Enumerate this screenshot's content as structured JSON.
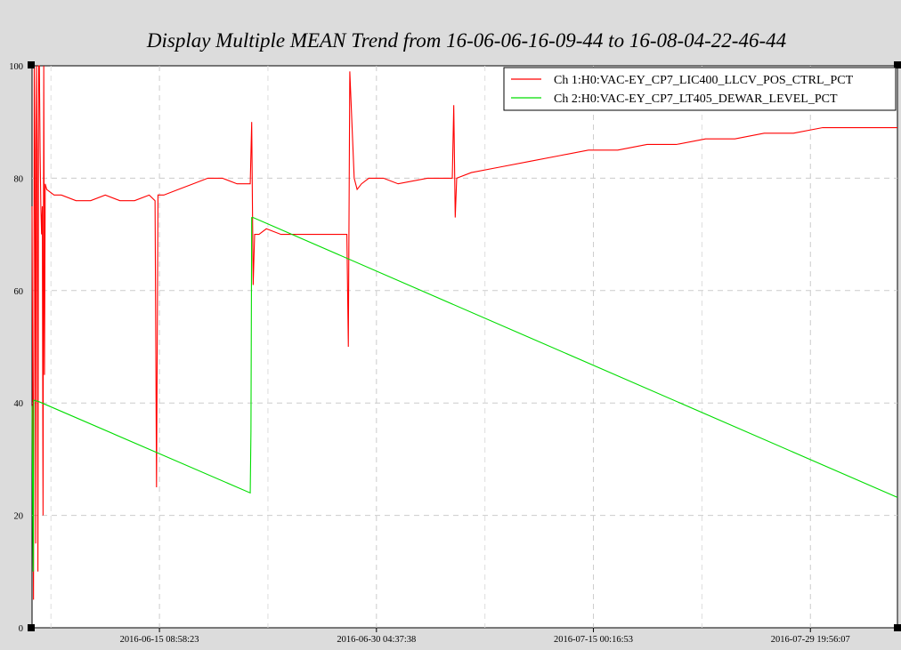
{
  "chart_data": {
    "type": "line",
    "title": "Display Multiple MEAN Trend from 16-06-06-16-09-44 to 16-08-04-22-46-44",
    "xlabel": "",
    "ylabel": "",
    "x_range": [
      "2016-06-06 16:09:44",
      "2016-08-04 22:46:44"
    ],
    "ylim": [
      0,
      100
    ],
    "y_ticks": [
      "0",
      "20",
      "40",
      "60",
      "80",
      "100"
    ],
    "x_ticks": [
      "2016-06-15 08:58:23",
      "2016-06-30 04:37:38",
      "2016-07-15 00:16:53",
      "2016-07-29 19:56:07"
    ],
    "grid": true,
    "legend_position": "top-right",
    "series": [
      {
        "name": "Ch 1:H0:VAC-EY_CP7_LIC400_LLCV_POS_CTRL_PCT",
        "color": "#ff0000",
        "x": [
          0.0,
          0.1,
          0.15,
          0.2,
          0.25,
          0.3,
          0.35,
          0.4,
          0.45,
          0.5,
          0.55,
          0.6,
          0.65,
          0.7,
          0.75,
          0.8,
          0.85,
          0.9,
          1.0,
          1.5,
          2.0,
          3.0,
          4.0,
          5.0,
          6.0,
          7.0,
          8.0,
          8.4,
          8.5,
          8.6,
          9.0,
          10.0,
          11.0,
          12.0,
          13.0,
          14.0,
          14.9,
          15.0,
          15.1,
          15.2,
          15.5,
          16.0,
          17.0,
          18.0,
          20.0,
          21.5,
          21.6,
          21.7,
          22.0,
          22.2,
          22.5,
          23.0,
          24.0,
          25.0,
          27.0,
          28.0,
          28.7,
          28.8,
          28.9,
          29.0,
          30.0,
          32.0,
          34.0,
          36.0,
          38.0,
          40.0,
          42.0,
          44.0,
          46.0,
          48.0,
          50.0,
          52.0,
          54.0,
          56.0,
          58.0,
          59.1
        ],
        "values": [
          75,
          5,
          100,
          85,
          15,
          100,
          85,
          10,
          100,
          100,
          85,
          75,
          70,
          75,
          20,
          100,
          45,
          79,
          78,
          77,
          77,
          76,
          76,
          77,
          76,
          76,
          77,
          76,
          25,
          77,
          77,
          78,
          79,
          80,
          80,
          79,
          79,
          90,
          61,
          70,
          70,
          71,
          70,
          70,
          70,
          70,
          50,
          99,
          80,
          78,
          79,
          80,
          80,
          79,
          80,
          80,
          80,
          93,
          73,
          80,
          81,
          82,
          83,
          84,
          85,
          85,
          86,
          86,
          87,
          87,
          88,
          88,
          89,
          89,
          89,
          89
        ]
      },
      {
        "name": "Ch 2:H0:VAC-EY_CP7_LT405_DEWAR_LEVEL_PCT",
        "color": "#00dd00",
        "x": [
          0.0,
          0.08,
          0.12,
          0.5,
          14.9,
          14.95,
          15.0,
          15.1,
          59.1
        ],
        "values": [
          39.5,
          10,
          40.5,
          40.2,
          24,
          35,
          73,
          73,
          23.2
        ]
      }
    ]
  }
}
